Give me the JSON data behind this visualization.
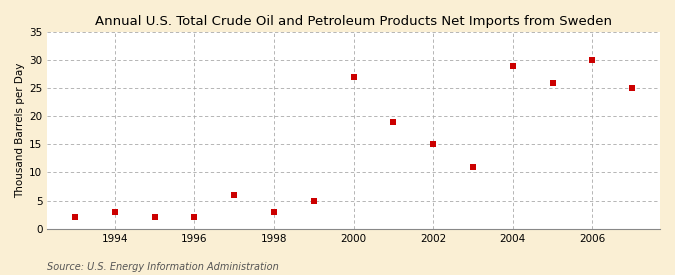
{
  "title": "Annual U.S. Total Crude Oil and Petroleum Products Net Imports from Sweden",
  "ylabel": "Thousand Barrels per Day",
  "source": "Source: U.S. Energy Information Administration",
  "years": [
    1993,
    1994,
    1995,
    1996,
    1997,
    1998,
    1999,
    2000,
    2001,
    2002,
    2003,
    2004,
    2005,
    2006,
    2007
  ],
  "values": [
    2,
    3,
    2,
    2,
    6,
    3,
    5,
    27,
    19,
    15,
    11,
    29,
    26,
    30,
    25
  ],
  "xlim": [
    1992.3,
    2007.7
  ],
  "ylim": [
    0,
    35
  ],
  "yticks": [
    0,
    5,
    10,
    15,
    20,
    25,
    30,
    35
  ],
  "xticks": [
    1994,
    1996,
    1998,
    2000,
    2002,
    2004,
    2006
  ],
  "marker_color": "#cc0000",
  "marker": "s",
  "marker_size": 4,
  "grid_color": "#aaaaaa",
  "fig_bg_color": "#faefd4",
  "ax_bg_color": "#ffffff",
  "title_fontsize": 9.5,
  "label_fontsize": 7.5,
  "tick_fontsize": 7.5,
  "source_fontsize": 7
}
